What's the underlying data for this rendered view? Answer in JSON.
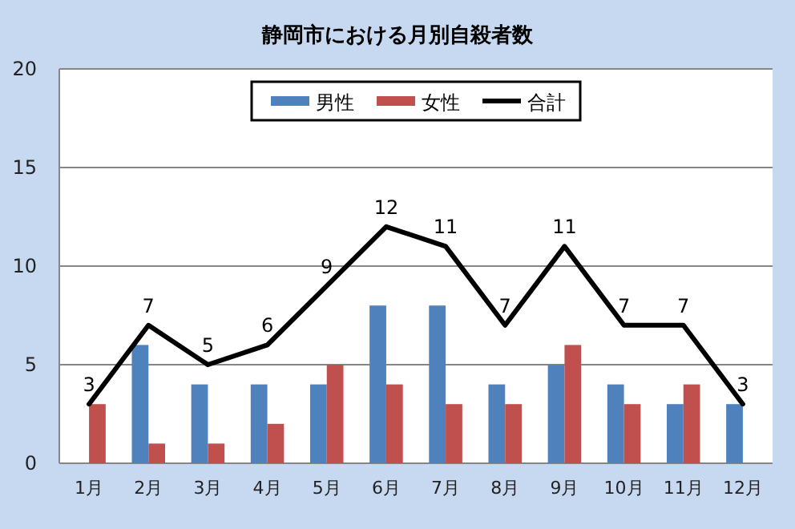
{
  "chart_data": {
    "type": "bar",
    "title": "静岡市における月別自殺者数",
    "categories": [
      "1月",
      "2月",
      "3月",
      "4月",
      "5月",
      "6月",
      "7月",
      "8月",
      "9月",
      "10月",
      "11月",
      "12月"
    ],
    "series": [
      {
        "name": "男性",
        "color": "#4f81bd",
        "values": [
          0,
          6,
          4,
          4,
          4,
          8,
          8,
          4,
          5,
          4,
          3,
          3
        ]
      },
      {
        "name": "女性",
        "color": "#c0504d",
        "values": [
          3,
          1,
          1,
          2,
          5,
          4,
          3,
          3,
          6,
          3,
          4,
          0
        ]
      },
      {
        "name": "合計",
        "type": "line",
        "color": "#000000",
        "values": [
          3,
          7,
          5,
          6,
          9,
          12,
          11,
          7,
          11,
          7,
          7,
          3
        ],
        "value_labels": [
          "3",
          "7",
          "5",
          "6",
          "9",
          "12",
          "11",
          "7",
          "11",
          "7",
          "7",
          "3"
        ]
      }
    ],
    "ylim": [
      0,
      20
    ],
    "yticks": [
      0,
      5,
      10,
      15,
      20
    ],
    "grid": "y",
    "legend": "top",
    "marker": "none",
    "line_style": "solid"
  }
}
